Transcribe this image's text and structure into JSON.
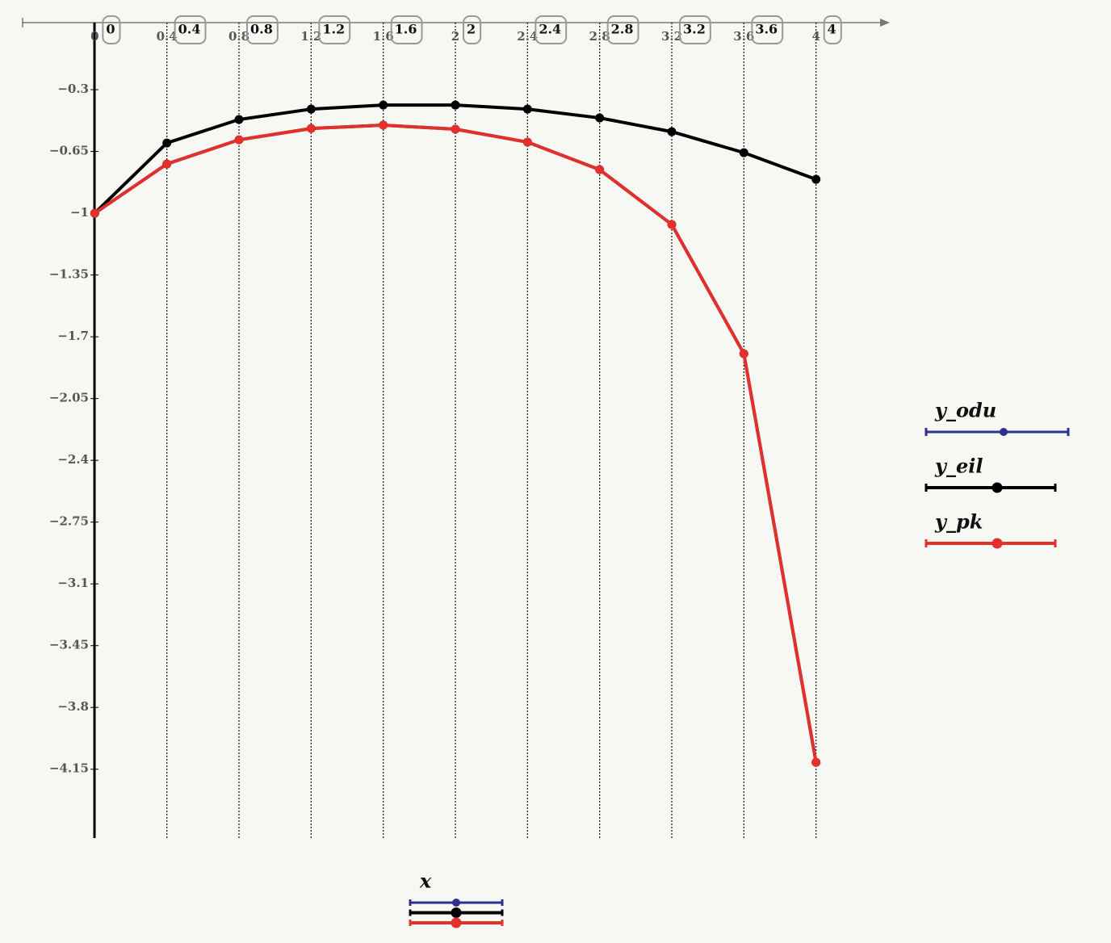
{
  "chart_data": {
    "type": "line",
    "x_label": "x",
    "x": [
      0,
      0.4,
      0.8,
      1.2,
      1.6,
      2,
      2.4,
      2.8,
      3.2,
      3.6,
      4
    ],
    "xlim": [
      -0.4,
      4.4
    ],
    "xticks": [
      0,
      0.4,
      0.8,
      1.2,
      1.6,
      2,
      2.4,
      2.8,
      3.2,
      3.6,
      4
    ],
    "ylim": [
      -4.54,
      0.08
    ],
    "yticks": [
      {
        "value": -0.3,
        "label": "−0.3"
      },
      {
        "value": -0.65,
        "label": "−0.65"
      },
      {
        "value": -1,
        "label": "−1"
      },
      {
        "value": -1.35,
        "label": "−1.35"
      },
      {
        "value": -1.7,
        "label": "−1.7"
      },
      {
        "value": -2.05,
        "label": "−2.05"
      },
      {
        "value": -2.4,
        "label": "−2.4"
      },
      {
        "value": -2.75,
        "label": "−2.75"
      },
      {
        "value": -3.1,
        "label": "−3.1"
      },
      {
        "value": -3.45,
        "label": "−3.45"
      },
      {
        "value": -3.8,
        "label": "−3.8"
      },
      {
        "value": -4.15,
        "label": "−4.15"
      }
    ],
    "grid": true,
    "series": [
      {
        "name": "y_odu",
        "color": "#2e3192",
        "values": [
          -1,
          -0.721,
          -0.584,
          -0.52,
          -0.501,
          -0.524,
          -0.597,
          -0.753,
          -1.064,
          -1.796,
          -4.111
        ]
      },
      {
        "name": "y_eil",
        "color": "#000000",
        "values": [
          -1,
          -0.602,
          -0.469,
          -0.41,
          -0.387,
          -0.387,
          -0.41,
          -0.46,
          -0.538,
          -0.657,
          -0.808
        ]
      },
      {
        "name": "y_pk",
        "color": "#e2302a",
        "values": [
          -1,
          -0.721,
          -0.584,
          -0.52,
          -0.501,
          -0.524,
          -0.597,
          -0.753,
          -1.064,
          -1.796,
          -4.111
        ]
      }
    ]
  }
}
